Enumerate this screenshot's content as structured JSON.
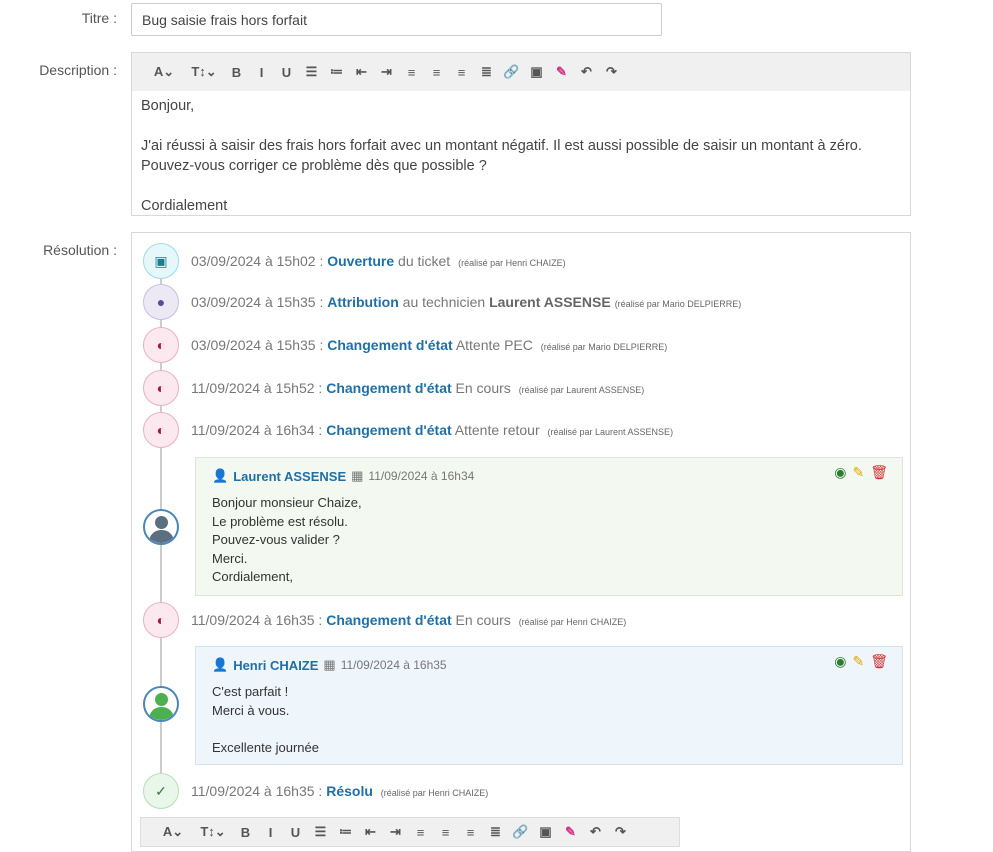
{
  "labels": {
    "title": "Titre :",
    "description": "Description :",
    "resolution": "Résolution :"
  },
  "title_value": "Bug saisie frais hors forfait",
  "toolbar": {
    "items": [
      {
        "name": "font-icon",
        "glyph": "A⌄"
      },
      {
        "name": "text-size-icon",
        "glyph": "T↕⌄"
      },
      {
        "name": "bold-icon",
        "glyph": "B"
      },
      {
        "name": "italic-icon",
        "glyph": "I"
      },
      {
        "name": "underline-icon",
        "glyph": "U"
      },
      {
        "name": "bullet-list-icon",
        "glyph": "☰"
      },
      {
        "name": "numbered-list-icon",
        "glyph": "≔"
      },
      {
        "name": "outdent-icon",
        "glyph": "⇤"
      },
      {
        "name": "indent-icon",
        "glyph": "⇥"
      },
      {
        "name": "align-left-icon",
        "glyph": "≡"
      },
      {
        "name": "align-center-icon",
        "glyph": "≡"
      },
      {
        "name": "align-right-icon",
        "glyph": "≡"
      },
      {
        "name": "justify-icon",
        "glyph": "≣"
      },
      {
        "name": "link-icon",
        "glyph": "🔗"
      },
      {
        "name": "image-icon",
        "glyph": "▣"
      },
      {
        "name": "color-picker-icon",
        "glyph": "✎"
      },
      {
        "name": "undo-icon",
        "glyph": "↶"
      },
      {
        "name": "redo-icon",
        "glyph": "↷"
      }
    ]
  },
  "description": [
    "Bonjour,",
    "",
    "J'ai réussi à saisir des frais hors forfait avec un montant négatif. Il est aussi possible de saisir un montant à zéro.",
    "Pouvez-vous corriger ce problème dès que possible ?",
    "",
    "Cordialement"
  ],
  "events": [
    {
      "date": "03/09/2024 à 15h02 :",
      "action": "Ouverture",
      "detail": "du ticket",
      "person": "",
      "by": "(réalisé par Henri CHAIZE)",
      "type": "open"
    },
    {
      "date": "03/09/2024 à 15h35 :",
      "action": "Attribution",
      "detail": "au technicien",
      "person": "Laurent ASSENSE",
      "by": "(réalisé par Mario DELPIERRE)",
      "type": "user"
    },
    {
      "date": "03/09/2024 à 15h35 :",
      "action": "Changement d'état",
      "detail": "Attente PEC",
      "person": "",
      "by": "(réalisé par Mario DELPIERRE)",
      "type": "state"
    },
    {
      "date": "11/09/2024 à 15h52 :",
      "action": "Changement d'état",
      "detail": "En cours",
      "person": "",
      "by": "(réalisé par Laurent ASSENSE)",
      "type": "state"
    },
    {
      "date": "11/09/2024 à 16h34 :",
      "action": "Changement d'état",
      "detail": "Attente retour",
      "person": "",
      "by": "(réalisé par Laurent ASSENSE)",
      "type": "state"
    },
    {
      "date": "11/09/2024 à 16h35 :",
      "action": "Changement d'état",
      "detail": "En cours",
      "person": "",
      "by": "(réalisé par Henri CHAIZE)",
      "type": "state"
    },
    {
      "date": "11/09/2024 à 16h35 :",
      "action": "Résolu",
      "detail": "",
      "person": "",
      "by": "(réalisé par Henri CHAIZE)",
      "type": "ok"
    }
  ],
  "comments": [
    {
      "author": "Laurent ASSENSE",
      "date": "11/09/2024 à 16h34",
      "lines": [
        "Bonjour monsieur Chaize,",
        "Le problème est résolu.",
        "Pouvez-vous valider ?",
        "Merci.",
        "Cordialement,"
      ]
    },
    {
      "author": "Henri CHAIZE",
      "date": "11/09/2024 à 16h35",
      "lines": [
        "C'est parfait !",
        "Merci à vous.",
        "",
        "Excellente journée"
      ]
    }
  ],
  "colors": {
    "link": "#1f6fa8",
    "comment_tech_bg": "#f3f8f0",
    "comment_user_bg": "#eef5fb"
  }
}
